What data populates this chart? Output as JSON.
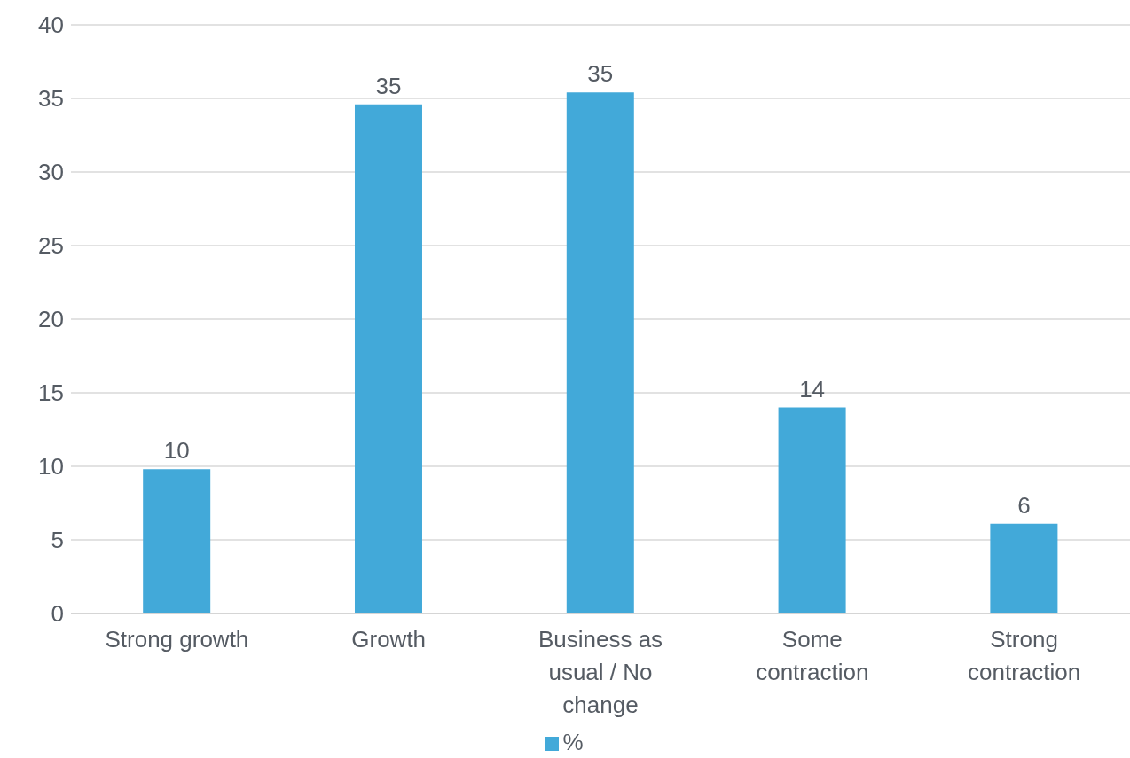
{
  "chart_data": {
    "type": "bar",
    "categories": [
      "Strong growth",
      "Growth",
      "Business as usual / No change",
      "Some contraction",
      "Strong contraction"
    ],
    "series": [
      {
        "name": "%",
        "color": "#42a9d9",
        "values": [
          9.8,
          34.6,
          35.4,
          14,
          6.1
        ],
        "value_labels": [
          "10",
          "35",
          "35",
          "14",
          "6"
        ]
      }
    ],
    "ylim": [
      0,
      40
    ],
    "yticks": [
      0,
      5,
      10,
      15,
      20,
      25,
      30,
      35,
      40
    ],
    "grid": "y",
    "legend": "bottom"
  }
}
